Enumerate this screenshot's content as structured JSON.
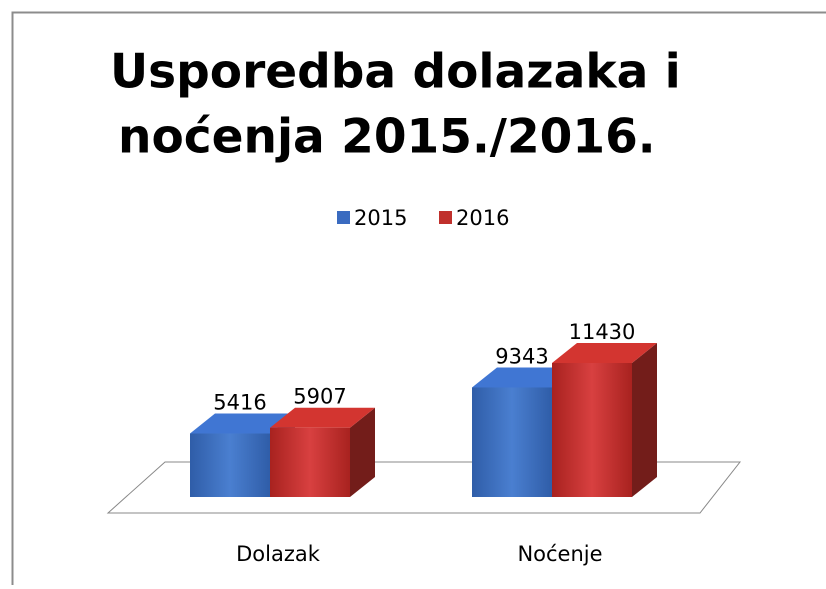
{
  "chart_data": {
    "type": "bar3d",
    "title": [
      "Usporedba dolazaka i",
      "noćenja 2015./2016."
    ],
    "categories": [
      "Dolazak",
      "Noćenje"
    ],
    "series": [
      {
        "name": "2015",
        "color": "#3a6bc0",
        "values": [
          5416,
          9343
        ]
      },
      {
        "name": "2016",
        "color": "#c0302c",
        "values": [
          5907,
          11430
        ]
      }
    ],
    "legend": "top"
  }
}
